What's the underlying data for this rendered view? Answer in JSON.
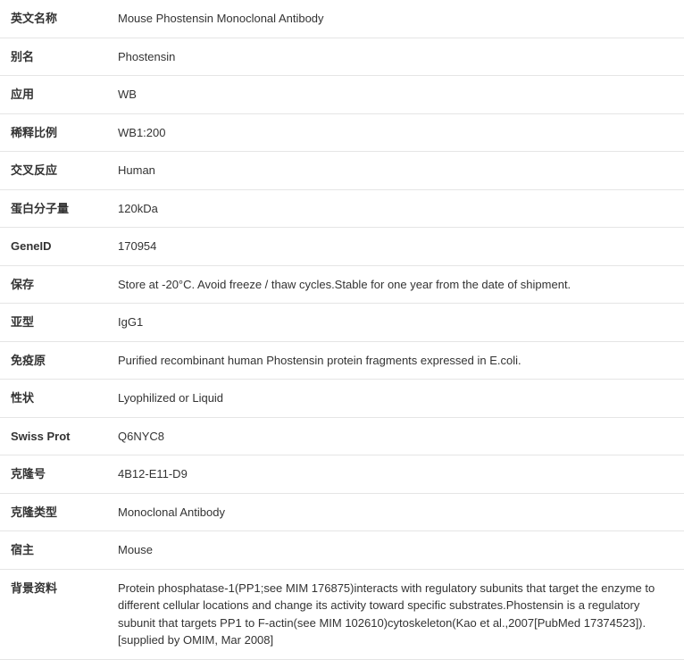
{
  "rows": [
    {
      "label": "英文名称",
      "value": "Mouse Phostensin Monoclonal Antibody"
    },
    {
      "label": "别名",
      "value": "Phostensin"
    },
    {
      "label": "应用",
      "value": "WB"
    },
    {
      "label": "稀释比例",
      "value": "WB1:200"
    },
    {
      "label": "交叉反应",
      "value": "Human"
    },
    {
      "label": "蛋白分子量",
      "value": "120kDa"
    },
    {
      "label": "GeneID",
      "value": "170954"
    },
    {
      "label": "保存",
      "value": "Store at -20°C. Avoid freeze / thaw cycles.Stable for one year from the date of shipment."
    },
    {
      "label": "亚型",
      "value": "IgG1"
    },
    {
      "label": "免疫原",
      "value": "Purified recombinant human Phostensin protein fragments expressed in E.coli."
    },
    {
      "label": "性状",
      "value": "Lyophilized or Liquid"
    },
    {
      "label": "Swiss Prot",
      "value": "Q6NYC8"
    },
    {
      "label": "克隆号",
      "value": "4B12-E11-D9"
    },
    {
      "label": "克隆类型",
      "value": "Monoclonal Antibody"
    },
    {
      "label": "宿主",
      "value": "Mouse"
    },
    {
      "label": "背景资料",
      "value": "Protein phosphatase-1(PP1;see MIM 176875)interacts with regulatory subunits that target the enzyme to different cellular locations and change its activity toward specific substrates.Phostensin is a regulatory subunit that targets PP1 to F-actin(see MIM 102610)cytoskeleton(Kao et al.,2007[PubMed 17374523]).[supplied by OMIM, Mar 2008]"
    }
  ]
}
